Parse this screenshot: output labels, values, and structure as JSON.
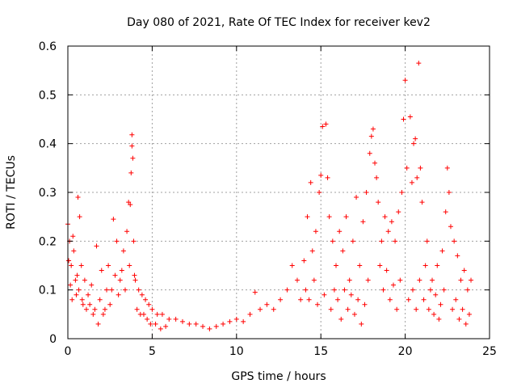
{
  "chart_data": {
    "type": "scatter",
    "title": "Day 080 of 2021, Rate Of TEC Index for receiver kev2",
    "xlabel": "GPS time / hours",
    "ylabel": "ROTI / TECUs",
    "xlim": [
      0,
      25
    ],
    "ylim": [
      0,
      0.6
    ],
    "x_ticks": [
      "0",
      "5",
      "10",
      "15",
      "20",
      "25"
    ],
    "y_ticks": [
      "0",
      "0.1",
      "0.2",
      "0.3",
      "0.4",
      "0.5",
      "0.6"
    ],
    "grid": true,
    "marker": "+",
    "series_color": "#ff0000",
    "series": [
      {
        "name": "ROTI",
        "points": [
          [
            0.0,
            0.235
          ],
          [
            0.1,
            0.2
          ],
          [
            0.2,
            0.15
          ],
          [
            0.3,
            0.21
          ],
          [
            0.45,
            0.12
          ],
          [
            0.5,
            0.09
          ],
          [
            0.6,
            0.29
          ],
          [
            0.7,
            0.25
          ],
          [
            0.8,
            0.15
          ],
          [
            0.9,
            0.07
          ],
          [
            1.0,
            0.12
          ],
          [
            1.2,
            0.09
          ],
          [
            1.4,
            0.11
          ],
          [
            1.6,
            0.06
          ],
          [
            1.7,
            0.19
          ],
          [
            1.8,
            0.03
          ],
          [
            2.0,
            0.14
          ],
          [
            2.2,
            0.06
          ],
          [
            2.4,
            0.15
          ],
          [
            2.6,
            0.1
          ],
          [
            2.7,
            0.245
          ],
          [
            2.9,
            0.2
          ],
          [
            3.1,
            0.12
          ],
          [
            3.3,
            0.18
          ],
          [
            3.5,
            0.22
          ],
          [
            3.6,
            0.28
          ],
          [
            3.7,
            0.275
          ],
          [
            3.75,
            0.34
          ],
          [
            3.8,
            0.395
          ],
          [
            3.8,
            0.418
          ],
          [
            3.85,
            0.37
          ],
          [
            3.9,
            0.2
          ],
          [
            4.0,
            0.12
          ],
          [
            4.2,
            0.1
          ],
          [
            4.4,
            0.09
          ],
          [
            4.6,
            0.08
          ],
          [
            4.8,
            0.07
          ],
          [
            5.0,
            0.06
          ],
          [
            5.3,
            0.05
          ],
          [
            5.6,
            0.05
          ],
          [
            6.0,
            0.04
          ],
          [
            6.4,
            0.04
          ],
          [
            6.8,
            0.035
          ],
          [
            7.2,
            0.03
          ],
          [
            7.6,
            0.03
          ],
          [
            8.0,
            0.025
          ],
          [
            8.4,
            0.02
          ],
          [
            8.8,
            0.025
          ],
          [
            9.2,
            0.03
          ],
          [
            9.6,
            0.035
          ],
          [
            10.0,
            0.04
          ],
          [
            10.4,
            0.035
          ],
          [
            10.8,
            0.05
          ],
          [
            11.1,
            0.095
          ],
          [
            11.4,
            0.06
          ],
          [
            11.8,
            0.07
          ],
          [
            12.2,
            0.06
          ],
          [
            12.6,
            0.08
          ],
          [
            13.0,
            0.1
          ],
          [
            13.3,
            0.15
          ],
          [
            13.6,
            0.12
          ],
          [
            13.8,
            0.08
          ],
          [
            14.0,
            0.16
          ],
          [
            14.2,
            0.25
          ],
          [
            14.4,
            0.32
          ],
          [
            14.5,
            0.18
          ],
          [
            14.7,
            0.22
          ],
          [
            14.9,
            0.3
          ],
          [
            15.0,
            0.335
          ],
          [
            15.1,
            0.435
          ],
          [
            15.3,
            0.44
          ],
          [
            15.4,
            0.33
          ],
          [
            15.5,
            0.25
          ],
          [
            15.7,
            0.2
          ],
          [
            15.9,
            0.15
          ],
          [
            16.1,
            0.22
          ],
          [
            16.3,
            0.18
          ],
          [
            16.5,
            0.25
          ],
          [
            16.7,
            0.12
          ],
          [
            16.9,
            0.2
          ],
          [
            17.1,
            0.29
          ],
          [
            17.3,
            0.15
          ],
          [
            17.5,
            0.24
          ],
          [
            17.7,
            0.3
          ],
          [
            17.9,
            0.38
          ],
          [
            18.0,
            0.415
          ],
          [
            18.1,
            0.43
          ],
          [
            18.2,
            0.36
          ],
          [
            18.3,
            0.33
          ],
          [
            18.4,
            0.28
          ],
          [
            18.6,
            0.2
          ],
          [
            18.8,
            0.25
          ],
          [
            19.0,
            0.22
          ],
          [
            19.2,
            0.24
          ],
          [
            19.4,
            0.2
          ],
          [
            19.6,
            0.26
          ],
          [
            19.8,
            0.3
          ],
          [
            19.9,
            0.45
          ],
          [
            20.0,
            0.53
          ],
          [
            20.1,
            0.35
          ],
          [
            20.3,
            0.455
          ],
          [
            20.4,
            0.32
          ],
          [
            20.5,
            0.4
          ],
          [
            20.6,
            0.41
          ],
          [
            20.7,
            0.33
          ],
          [
            20.8,
            0.565
          ],
          [
            20.9,
            0.35
          ],
          [
            21.0,
            0.28
          ],
          [
            21.3,
            0.2
          ],
          [
            21.6,
            0.12
          ],
          [
            21.9,
            0.15
          ],
          [
            22.2,
            0.18
          ],
          [
            22.4,
            0.26
          ],
          [
            22.5,
            0.35
          ],
          [
            22.6,
            0.3
          ],
          [
            22.7,
            0.23
          ],
          [
            22.9,
            0.2
          ],
          [
            23.1,
            0.17
          ],
          [
            23.3,
            0.12
          ],
          [
            23.5,
            0.14
          ],
          [
            23.7,
            0.1
          ],
          [
            23.9,
            0.12
          ],
          [
            0.05,
            0.16
          ],
          [
            0.15,
            0.11
          ],
          [
            0.25,
            0.08
          ],
          [
            0.35,
            0.18
          ],
          [
            0.55,
            0.13
          ],
          [
            0.65,
            0.1
          ],
          [
            0.85,
            0.08
          ],
          [
            1.1,
            0.06
          ],
          [
            1.3,
            0.07
          ],
          [
            1.5,
            0.05
          ],
          [
            1.9,
            0.08
          ],
          [
            2.1,
            0.05
          ],
          [
            2.3,
            0.1
          ],
          [
            2.5,
            0.07
          ],
          [
            2.8,
            0.13
          ],
          [
            3.0,
            0.09
          ],
          [
            3.2,
            0.14
          ],
          [
            3.4,
            0.1
          ],
          [
            3.65,
            0.15
          ],
          [
            3.95,
            0.13
          ],
          [
            4.1,
            0.06
          ],
          [
            4.3,
            0.05
          ],
          [
            4.5,
            0.05
          ],
          [
            4.7,
            0.04
          ],
          [
            4.9,
            0.03
          ],
          [
            5.2,
            0.03
          ],
          [
            5.5,
            0.02
          ],
          [
            5.8,
            0.025
          ],
          [
            14.1,
            0.1
          ],
          [
            14.3,
            0.08
          ],
          [
            14.6,
            0.12
          ],
          [
            14.8,
            0.07
          ],
          [
            15.2,
            0.09
          ],
          [
            15.6,
            0.06
          ],
          [
            15.8,
            0.1
          ],
          [
            16.0,
            0.08
          ],
          [
            16.2,
            0.04
          ],
          [
            16.4,
            0.1
          ],
          [
            16.6,
            0.06
          ],
          [
            16.8,
            0.09
          ],
          [
            17.0,
            0.05
          ],
          [
            17.2,
            0.08
          ],
          [
            17.4,
            0.03
          ],
          [
            17.6,
            0.07
          ],
          [
            17.8,
            0.12
          ],
          [
            18.5,
            0.15
          ],
          [
            18.7,
            0.1
          ],
          [
            18.9,
            0.14
          ],
          [
            19.1,
            0.08
          ],
          [
            19.3,
            0.11
          ],
          [
            19.5,
            0.06
          ],
          [
            19.7,
            0.12
          ],
          [
            20.2,
            0.08
          ],
          [
            20.45,
            0.1
          ],
          [
            20.65,
            0.06
          ],
          [
            20.85,
            0.12
          ],
          [
            21.1,
            0.08
          ],
          [
            21.2,
            0.15
          ],
          [
            21.4,
            0.06
          ],
          [
            21.5,
            0.1
          ],
          [
            21.7,
            0.05
          ],
          [
            21.8,
            0.09
          ],
          [
            22.0,
            0.04
          ],
          [
            22.1,
            0.07
          ],
          [
            22.3,
            0.1
          ],
          [
            22.8,
            0.06
          ],
          [
            23.0,
            0.08
          ],
          [
            23.2,
            0.04
          ],
          [
            23.4,
            0.06
          ],
          [
            23.6,
            0.03
          ],
          [
            23.8,
            0.05
          ]
        ]
      }
    ]
  }
}
